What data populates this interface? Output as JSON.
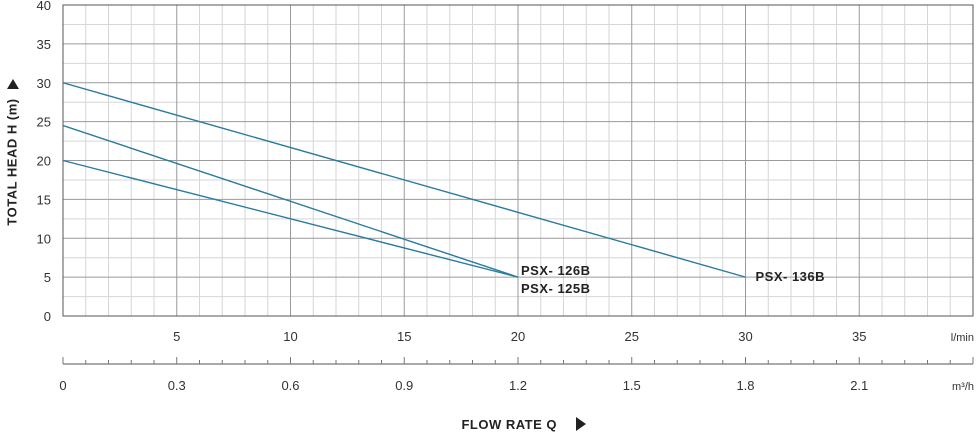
{
  "chart_data": {
    "type": "line",
    "xlabel": "FLOW RATE Q",
    "ylabel": "TOTAL HEAD H (m)",
    "xlim": [
      0,
      40
    ],
    "ylim": [
      0,
      40
    ],
    "x_ticks": [
      "5",
      "10",
      "15",
      "20",
      "25",
      "30",
      "35"
    ],
    "x_unit": "l/min",
    "x2_ticks": [
      "0",
      "0.3",
      "0.6",
      "0.9",
      "1.2",
      "1.5",
      "1.8",
      "2.1"
    ],
    "x2_unit": "m³/h",
    "y_ticks": [
      "0",
      "5",
      "10",
      "15",
      "20",
      "25",
      "30",
      "35",
      "40"
    ],
    "grid": true,
    "line_color": "#2a7aa0",
    "series": [
      {
        "name": "PSX- 126B",
        "x": [
          0,
          20
        ],
        "y": [
          24.5,
          5
        ]
      },
      {
        "name": "PSX- 125B",
        "x": [
          0,
          20
        ],
        "y": [
          20,
          5
        ]
      },
      {
        "name": "PSX- 136B",
        "x": [
          0,
          30
        ],
        "y": [
          30,
          5
        ]
      }
    ]
  }
}
